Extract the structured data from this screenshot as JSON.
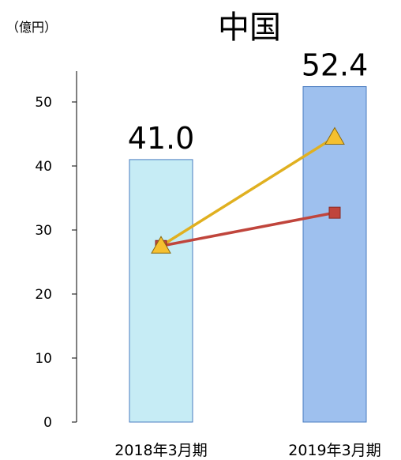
{
  "chart_data": {
    "type": "bar",
    "title": "中国",
    "unit_label": "（億円）",
    "categories": [
      "2018年3月期",
      "2019年3月期"
    ],
    "values": [
      41.0,
      52.4
    ],
    "value_labels": [
      "41.0",
      "52.4"
    ],
    "bar_colors": [
      "#c6ecf5",
      "#9ec0ee"
    ],
    "bar_stroke": "#4a7cc0",
    "ylim": [
      0,
      50
    ],
    "yticks": [
      0,
      10,
      20,
      30,
      40,
      50
    ],
    "grid": false,
    "series": [
      {
        "type": "line",
        "marker": "square",
        "color": "#c0453c",
        "values": [
          27.5,
          32.7
        ]
      },
      {
        "type": "line",
        "marker": "triangle",
        "color": "#e0b020",
        "marker_fill": "#f5c030",
        "values": [
          27.5,
          44.5
        ]
      }
    ]
  }
}
